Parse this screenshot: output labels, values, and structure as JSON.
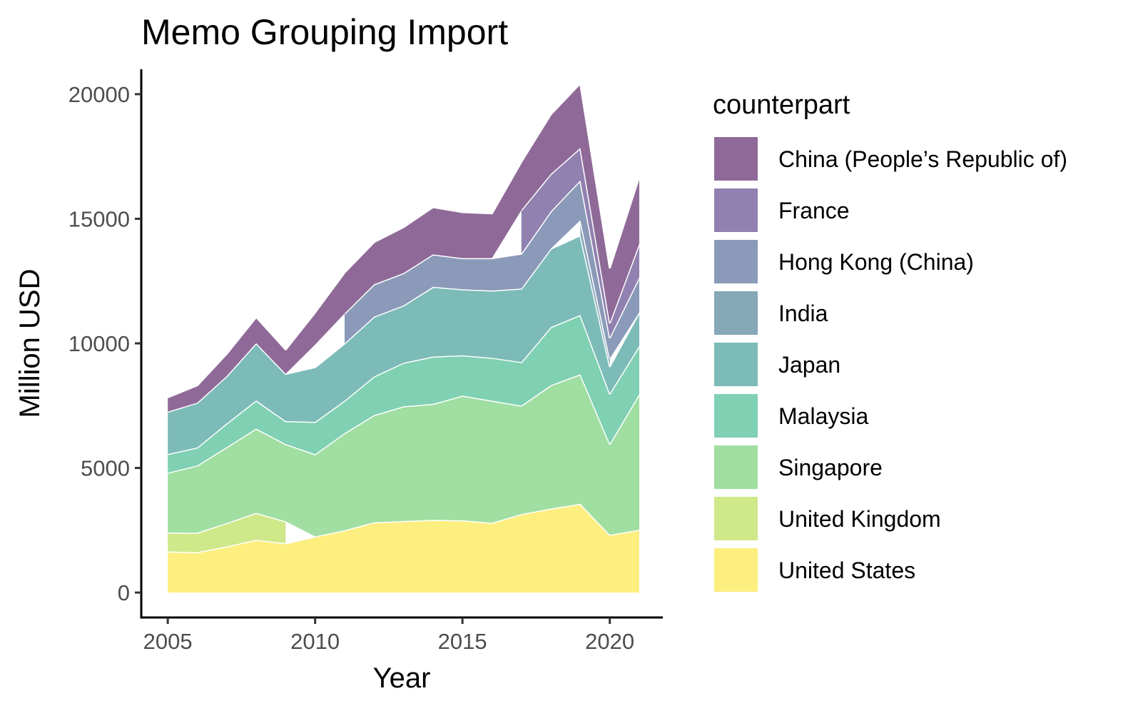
{
  "chart_data": {
    "type": "area",
    "stacked": true,
    "title": "Memo Grouping Import",
    "xlabel": "Year",
    "ylabel": "Million USD",
    "x_ticks": [
      2005,
      2010,
      2015,
      2020
    ],
    "y_ticks": [
      0,
      5000,
      10000,
      15000,
      20000
    ],
    "xlim": [
      2004.1,
      2021.8
    ],
    "ylim": [
      -1000,
      21000
    ],
    "grid": false,
    "legend": {
      "title": "counterpart",
      "position": "right",
      "entries": [
        "China (People’s Republic of)",
        "France",
        "Hong Kong (China)",
        "India",
        "Japan",
        "Malaysia",
        "Singapore",
        "United Kingdom",
        "United States"
      ]
    },
    "x": [
      2005,
      2006,
      2007,
      2008,
      2009,
      2010,
      2011,
      2012,
      2013,
      2014,
      2015,
      2016,
      2017,
      2018,
      2019,
      2020,
      2021
    ],
    "series": [
      {
        "name": "United States",
        "color": "#fdee80",
        "values": [
          1650,
          1620,
          1850,
          2120,
          1980,
          2250,
          2500,
          2820,
          2870,
          2920,
          2900,
          2800,
          3150,
          3370,
          3560,
          2320,
          2520
        ]
      },
      {
        "name": "United Kingdom",
        "color": "#cfe88a",
        "values": [
          760,
          780,
          940,
          1080,
          880,
          null,
          null,
          null,
          null,
          null,
          null,
          null,
          null,
          null,
          null,
          null,
          null
        ]
      },
      {
        "name": "Singapore",
        "color": "#a0dea2",
        "values": [
          2400,
          2700,
          3050,
          3380,
          3100,
          3300,
          3900,
          4300,
          4600,
          4650,
          5000,
          4900,
          4350,
          4950,
          5200,
          3650,
          5450
        ]
      },
      {
        "name": "Malaysia",
        "color": "#80d0b3",
        "values": [
          750,
          720,
          950,
          1130,
          920,
          1300,
          1300,
          1550,
          1750,
          1900,
          1620,
          1720,
          1750,
          2330,
          2380,
          2020,
          1930
        ]
      },
      {
        "name": "Japan",
        "color": "#7cbbb8",
        "values": [
          1700,
          1800,
          1900,
          2300,
          1900,
          2200,
          2300,
          2400,
          2300,
          2800,
          2650,
          2700,
          2950,
          3150,
          3200,
          1100,
          1350
        ]
      },
      {
        "name": "India",
        "color": "#86a8b8",
        "values": [
          null,
          null,
          null,
          null,
          null,
          900,
          null,
          null,
          null,
          null,
          null,
          null,
          null,
          null,
          600,
          300,
          null
        ]
      },
      {
        "name": "Hong Kong (China)",
        "color": "#8a9ab8",
        "values": [
          null,
          null,
          null,
          null,
          null,
          null,
          1200,
          1300,
          1300,
          1300,
          1250,
          1300,
          1400,
          1500,
          1600,
          850,
          1400
        ]
      },
      {
        "name": "France",
        "color": "#9181b0",
        "values": [
          null,
          null,
          null,
          null,
          null,
          null,
          null,
          null,
          null,
          null,
          null,
          null,
          1750,
          1500,
          1300,
          600,
          1350
        ]
      },
      {
        "name": "China (People’s Republic of)",
        "color": "#8f6a98",
        "values": [
          580,
          700,
          900,
          1050,
          980,
          1300,
          1650,
          1700,
          1850,
          1900,
          1850,
          1800,
          1950,
          2400,
          2600,
          2200,
          2700
        ]
      }
    ]
  }
}
